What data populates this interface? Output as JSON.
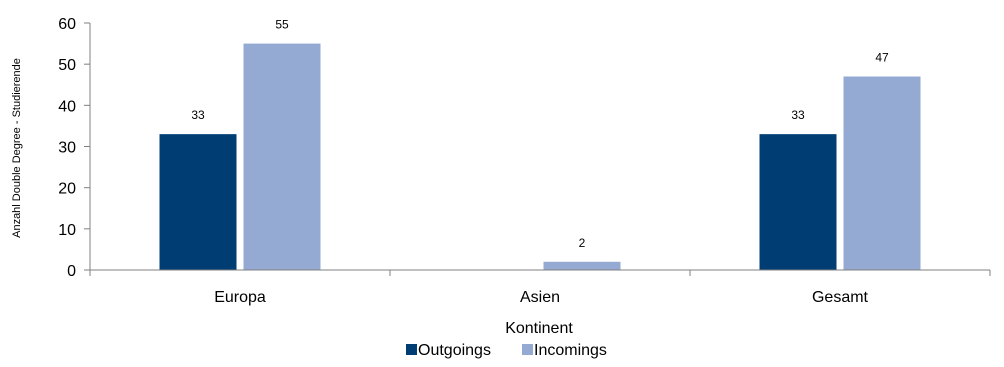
{
  "chart_data": {
    "type": "bar",
    "title": "",
    "xlabel": "Kontinent",
    "ylabel": "Anzahl  Double  Degree  -  Studierende",
    "categories": [
      "Europa",
      "Asien",
      "Gesamt"
    ],
    "series": [
      {
        "name": "Outgoings",
        "values": [
          33,
          0,
          33
        ],
        "labels": [
          "33",
          "",
          "33"
        ],
        "color": "#003D73"
      },
      {
        "name": "Incomings",
        "values": [
          55,
          2,
          47
        ],
        "labels": [
          "55",
          "2",
          "47"
        ],
        "color": "#94AAD2"
      }
    ],
    "yticks": [
      "0",
      "10",
      "20",
      "30",
      "40",
      "50",
      "60"
    ],
    "ylim": [
      0,
      60
    ],
    "grid": false,
    "legend_position": "bottom"
  }
}
